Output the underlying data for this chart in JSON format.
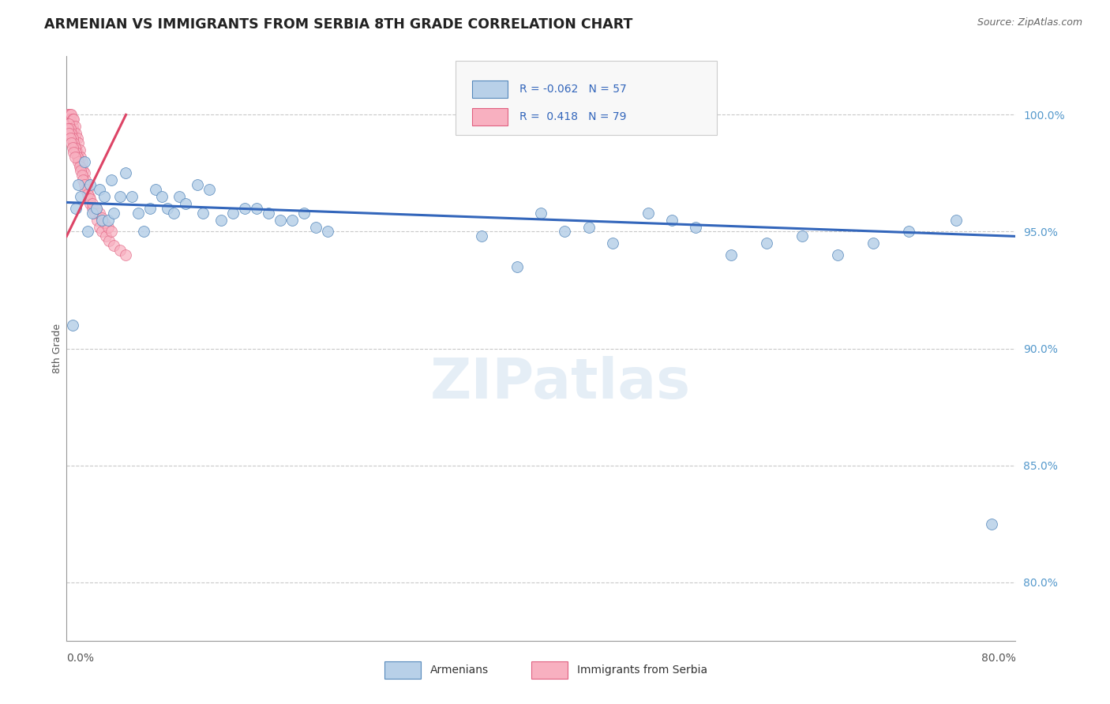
{
  "title": "ARMENIAN VS IMMIGRANTS FROM SERBIA 8TH GRADE CORRELATION CHART",
  "source": "Source: ZipAtlas.com",
  "ylabel": "8th Grade",
  "ylabel_right_values": [
    1.0,
    0.95,
    0.9,
    0.85,
    0.8
  ],
  "xmin": 0.0,
  "xmax": 0.8,
  "ymin": 0.775,
  "ymax": 1.025,
  "legend_blue_R": "-0.062",
  "legend_blue_N": "57",
  "legend_pink_R": "0.418",
  "legend_pink_N": "79",
  "blue_color": "#b8d0e8",
  "blue_edge_color": "#5588bb",
  "pink_color": "#f8b0c0",
  "pink_edge_color": "#e06080",
  "blue_line_color": "#3366bb",
  "pink_line_color": "#dd4466",
  "grid_color": "#bbbbbb",
  "watermark": "ZIPatlas",
  "blue_scatter_x": [
    0.005,
    0.008,
    0.01,
    0.012,
    0.015,
    0.018,
    0.02,
    0.022,
    0.025,
    0.028,
    0.03,
    0.032,
    0.035,
    0.038,
    0.04,
    0.045,
    0.05,
    0.055,
    0.06,
    0.065,
    0.07,
    0.075,
    0.08,
    0.085,
    0.09,
    0.095,
    0.1,
    0.11,
    0.115,
    0.12,
    0.13,
    0.14,
    0.15,
    0.16,
    0.17,
    0.18,
    0.19,
    0.2,
    0.21,
    0.22,
    0.35,
    0.38,
    0.4,
    0.42,
    0.44,
    0.46,
    0.49,
    0.51,
    0.53,
    0.56,
    0.59,
    0.62,
    0.65,
    0.68,
    0.71,
    0.75,
    0.78
  ],
  "blue_scatter_y": [
    0.91,
    0.96,
    0.97,
    0.965,
    0.98,
    0.95,
    0.97,
    0.958,
    0.96,
    0.968,
    0.955,
    0.965,
    0.955,
    0.972,
    0.958,
    0.965,
    0.975,
    0.965,
    0.958,
    0.95,
    0.96,
    0.968,
    0.965,
    0.96,
    0.958,
    0.965,
    0.962,
    0.97,
    0.958,
    0.968,
    0.955,
    0.958,
    0.96,
    0.96,
    0.958,
    0.955,
    0.955,
    0.958,
    0.952,
    0.95,
    0.948,
    0.935,
    0.958,
    0.95,
    0.952,
    0.945,
    0.958,
    0.955,
    0.952,
    0.94,
    0.945,
    0.948,
    0.94,
    0.945,
    0.95,
    0.955,
    0.825
  ],
  "pink_scatter_x": [
    0.001,
    0.001,
    0.001,
    0.002,
    0.002,
    0.002,
    0.002,
    0.003,
    0.003,
    0.003,
    0.004,
    0.004,
    0.004,
    0.005,
    0.005,
    0.005,
    0.006,
    0.006,
    0.006,
    0.007,
    0.007,
    0.008,
    0.008,
    0.009,
    0.009,
    0.01,
    0.01,
    0.011,
    0.012,
    0.012,
    0.013,
    0.014,
    0.015,
    0.016,
    0.017,
    0.018,
    0.019,
    0.02,
    0.022,
    0.024,
    0.026,
    0.028,
    0.03,
    0.033,
    0.036,
    0.04,
    0.045,
    0.05,
    0.002,
    0.003,
    0.004,
    0.005,
    0.006,
    0.007,
    0.008,
    0.009,
    0.01,
    0.011,
    0.012,
    0.013,
    0.014,
    0.015,
    0.016,
    0.018,
    0.02,
    0.022,
    0.025,
    0.028,
    0.03,
    0.032,
    0.035,
    0.038,
    0.001,
    0.002,
    0.003,
    0.004,
    0.005,
    0.006,
    0.007
  ],
  "pink_scatter_y": [
    1.0,
    0.998,
    0.995,
    1.0,
    0.998,
    0.996,
    0.992,
    1.0,
    0.998,
    0.994,
    1.0,
    0.997,
    0.993,
    0.998,
    0.995,
    0.99,
    0.998,
    0.993,
    0.988,
    0.995,
    0.99,
    0.992,
    0.986,
    0.99,
    0.984,
    0.988,
    0.982,
    0.985,
    0.982,
    0.978,
    0.98,
    0.976,
    0.975,
    0.972,
    0.97,
    0.968,
    0.965,
    0.962,
    0.96,
    0.958,
    0.955,
    0.952,
    0.95,
    0.948,
    0.946,
    0.944,
    0.942,
    0.94,
    0.996,
    0.994,
    0.992,
    0.99,
    0.988,
    0.986,
    0.984,
    0.982,
    0.98,
    0.978,
    0.976,
    0.974,
    0.972,
    0.97,
    0.968,
    0.966,
    0.964,
    0.962,
    0.96,
    0.958,
    0.956,
    0.954,
    0.952,
    0.95,
    0.994,
    0.992,
    0.99,
    0.988,
    0.986,
    0.984,
    0.982
  ],
  "blue_trend_x": [
    0.0,
    0.8
  ],
  "blue_trend_y": [
    0.9625,
    0.948
  ],
  "pink_trend_x": [
    0.0,
    0.05
  ],
  "pink_trend_y": [
    0.948,
    1.0
  ]
}
